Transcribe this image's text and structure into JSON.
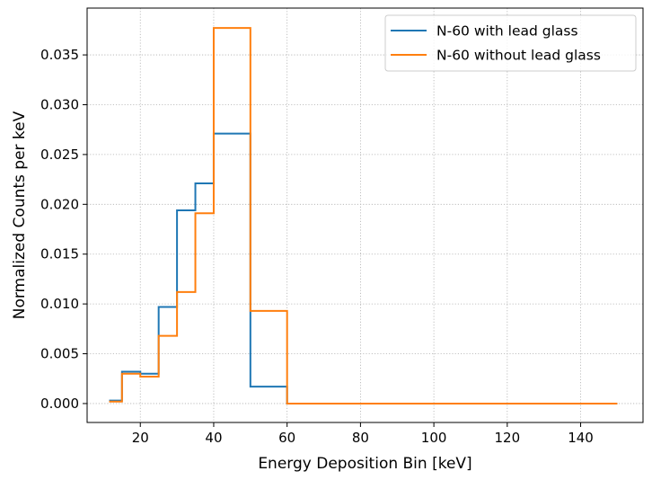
{
  "chart_data": {
    "type": "line",
    "style": "step",
    "xlabel": "Energy Deposition Bin [keV]",
    "ylabel": "Normalized Counts per keV",
    "xlim": [
      5.5,
      157
    ],
    "ylim": [
      -0.0019,
      0.0397
    ],
    "xticks": [
      20,
      40,
      60,
      80,
      100,
      120,
      140
    ],
    "yticks": [
      0.0,
      0.005,
      0.01,
      0.015,
      0.02,
      0.025,
      0.03,
      0.035
    ],
    "ytick_labels": [
      "0.000",
      "0.005",
      "0.010",
      "0.015",
      "0.020",
      "0.025",
      "0.030",
      "0.035"
    ],
    "grid": true,
    "legend_position": "top-right",
    "x": [
      11.5,
      15,
      20,
      25,
      30,
      35,
      40,
      50,
      60,
      150
    ],
    "series": [
      {
        "name": "N-60 with lead glass",
        "color": "#1f77b4",
        "values": [
          0.0003,
          0.0032,
          0.003,
          0.0097,
          0.0194,
          0.0221,
          0.0271,
          0.0017,
          0.0,
          0.0
        ]
      },
      {
        "name": "N-60 without lead glass",
        "color": "#ff7f0e",
        "values": [
          0.0002,
          0.003,
          0.0027,
          0.0068,
          0.0112,
          0.0191,
          0.0377,
          0.0093,
          0.0,
          0.0
        ]
      }
    ]
  }
}
